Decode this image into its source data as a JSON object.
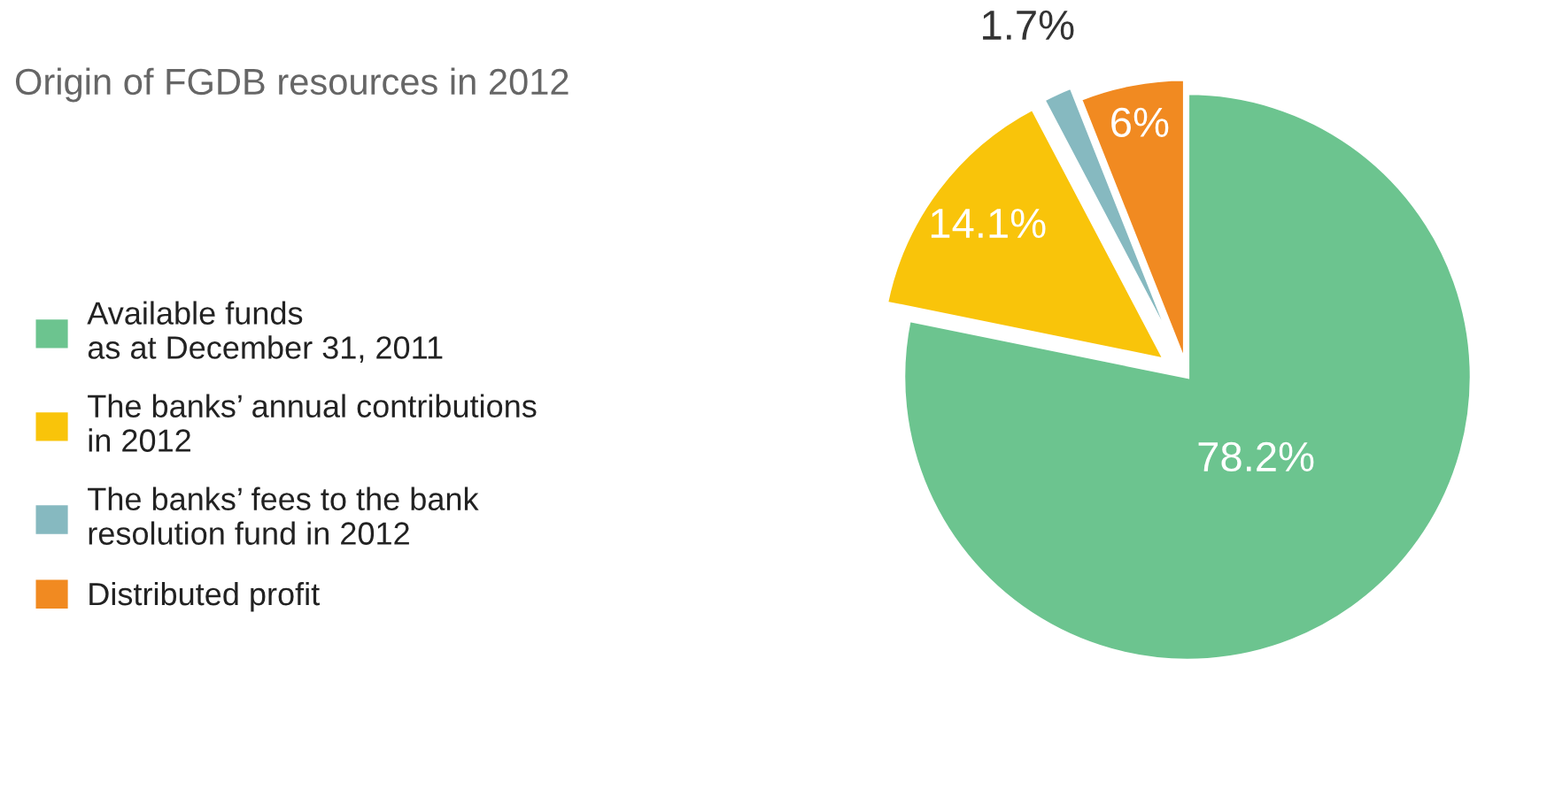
{
  "chart_data": {
    "type": "pie",
    "title": "Origin of FGDB resources in 2012",
    "categories": [
      "Available funds\nas at December 31, 2011",
      "The banks’ annual contributions\nin 2012",
      "The banks’ fees to the bank\nresolution fund in 2012",
      "Distributed profit"
    ],
    "values": [
      78.2,
      14.1,
      1.7,
      6
    ],
    "value_labels": [
      "78.2%",
      "14.1%",
      "1.7%",
      "6%"
    ],
    "colors": [
      "#6cc48f",
      "#f9c40a",
      "#86b9c0",
      "#f18a21"
    ],
    "legend": "left"
  }
}
